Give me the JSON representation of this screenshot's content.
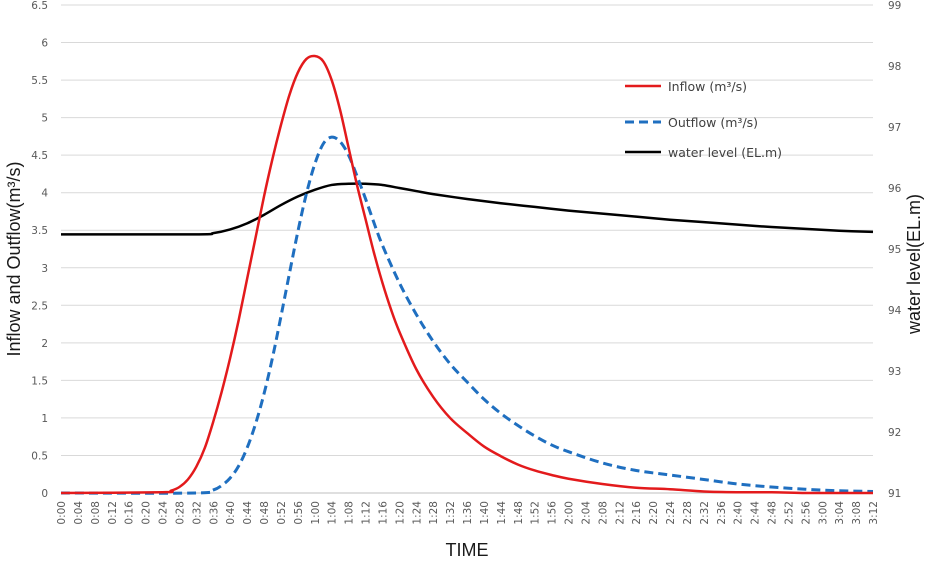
{
  "chart_data": {
    "type": "line",
    "xlabel": "TIME",
    "ylabel": "Inflow and Outflow(m³/s)",
    "y2label": "water level(EL.m)",
    "ylim": [
      0,
      6.5
    ],
    "y2lim": [
      91,
      99
    ],
    "yticks": [
      "0",
      "0.5",
      "1",
      "1.5",
      "2",
      "2.5",
      "3",
      "3.5",
      "4",
      "4.5",
      "5",
      "5.5",
      "6",
      "6.5"
    ],
    "y2ticks": [
      "91",
      "92",
      "93",
      "94",
      "95",
      "96",
      "97",
      "98",
      "99"
    ],
    "x_ticks": [
      "0:00",
      "0:04",
      "0:08",
      "0:12",
      "0:16",
      "0:20",
      "0:24",
      "0:28",
      "0:32",
      "0:36",
      "0:40",
      "0:44",
      "0:48",
      "0:52",
      "0:56",
      "1:00",
      "1:04",
      "1:08",
      "1:12",
      "1:16",
      "1:20",
      "1:24",
      "1:28",
      "1:32",
      "1:36",
      "1:40",
      "1:44",
      "1:48",
      "1:52",
      "1:56",
      "2:00",
      "2:04",
      "2:08",
      "2:12",
      "2:16",
      "2:20",
      "2:24",
      "2:28",
      "2:32",
      "2:36",
      "2:40",
      "2:44",
      "2:48",
      "2:52",
      "2:56",
      "3:00",
      "3:04",
      "3:08",
      "3:12"
    ],
    "x_range_minutes": [
      0,
      192
    ],
    "grid": "horizontal",
    "legend_position": "top-right",
    "series": [
      {
        "name": "Inflow (m³/s)",
        "axis": "left",
        "color": "#e31a1c",
        "style": "solid",
        "x": [
          0,
          24,
          26,
          28,
          30,
          32,
          34,
          36,
          38,
          40,
          42,
          44,
          46,
          48,
          50,
          52,
          54,
          56,
          58,
          60,
          62,
          64,
          66,
          68,
          70,
          72,
          74,
          76,
          78,
          80,
          84,
          88,
          92,
          96,
          100,
          104,
          108,
          112,
          116,
          120,
          128,
          136,
          144,
          152,
          160,
          168,
          176,
          184,
          192
        ],
        "y": [
          0,
          0.01,
          0.03,
          0.08,
          0.18,
          0.35,
          0.6,
          0.95,
          1.35,
          1.8,
          2.3,
          2.85,
          3.4,
          3.95,
          4.45,
          4.9,
          5.3,
          5.6,
          5.78,
          5.82,
          5.75,
          5.5,
          5.1,
          4.6,
          4.1,
          3.65,
          3.2,
          2.8,
          2.45,
          2.15,
          1.65,
          1.28,
          1.0,
          0.8,
          0.62,
          0.49,
          0.38,
          0.3,
          0.24,
          0.19,
          0.12,
          0.07,
          0.05,
          0.02,
          0.01,
          0.01,
          0,
          0,
          0
        ]
      },
      {
        "name": "Outflow (m³/s)",
        "axis": "left",
        "color": "#1f6fc0",
        "style": "dashed",
        "x": [
          0,
          32,
          36,
          38,
          40,
          42,
          44,
          46,
          48,
          50,
          52,
          54,
          56,
          58,
          60,
          62,
          64,
          66,
          68,
          70,
          72,
          74,
          76,
          80,
          84,
          88,
          92,
          96,
          100,
          104,
          108,
          112,
          116,
          120,
          128,
          136,
          144,
          152,
          160,
          168,
          176,
          184,
          192
        ],
        "y": [
          0,
          0,
          0.04,
          0.1,
          0.2,
          0.36,
          0.6,
          0.92,
          1.32,
          1.8,
          2.35,
          2.92,
          3.48,
          3.98,
          4.38,
          4.65,
          4.74,
          4.68,
          4.5,
          4.22,
          3.92,
          3.6,
          3.3,
          2.8,
          2.38,
          2.02,
          1.72,
          1.48,
          1.25,
          1.06,
          0.9,
          0.76,
          0.64,
          0.55,
          0.4,
          0.3,
          0.24,
          0.18,
          0.12,
          0.08,
          0.05,
          0.03,
          0.02
        ]
      },
      {
        "name": "water level (EL.m)",
        "axis": "right",
        "color": "#000000",
        "style": "solid",
        "x": [
          0,
          32,
          36,
          40,
          44,
          48,
          52,
          56,
          60,
          64,
          68,
          72,
          76,
          80,
          84,
          88,
          96,
          104,
          112,
          120,
          128,
          136,
          144,
          152,
          160,
          168,
          176,
          184,
          192
        ],
        "y": [
          95.24,
          95.24,
          95.26,
          95.32,
          95.42,
          95.56,
          95.72,
          95.86,
          95.97,
          96.05,
          96.07,
          96.07,
          96.05,
          96.0,
          95.95,
          95.9,
          95.82,
          95.75,
          95.69,
          95.63,
          95.58,
          95.53,
          95.48,
          95.44,
          95.4,
          95.36,
          95.33,
          95.3,
          95.28
        ]
      }
    ]
  }
}
